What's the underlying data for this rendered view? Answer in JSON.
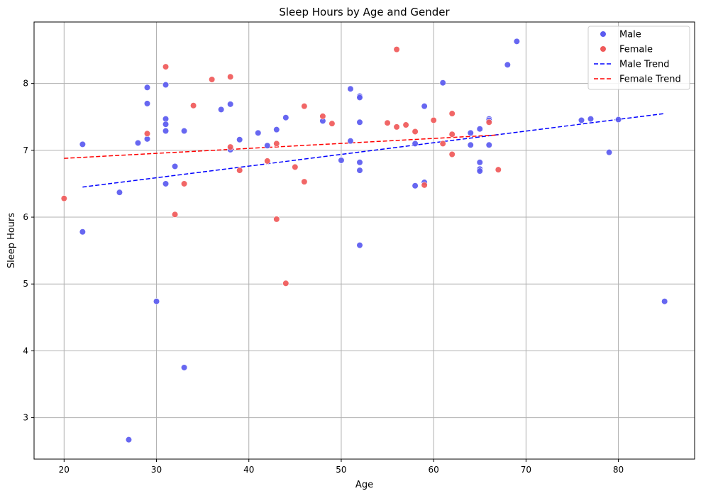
{
  "chart_data": {
    "type": "scatter",
    "title": "Sleep Hours by Age and Gender",
    "xlabel": "Age",
    "ylabel": "Sleep Hours",
    "xlim": [
      16.75,
      88.25
    ],
    "ylim": [
      2.38,
      8.92
    ],
    "xticks": [
      20,
      30,
      40,
      50,
      60,
      70,
      80
    ],
    "yticks": [
      3,
      4,
      5,
      6,
      7,
      8
    ],
    "grid": true,
    "legend_position": "top-right",
    "colors": {
      "male": "#5b5bf0",
      "female": "#f05a5a",
      "male_trend": "#0000ff",
      "female_trend": "#ff0000"
    },
    "series": [
      {
        "name": "Male",
        "kind": "scatter",
        "points": [
          [
            22,
            7.09
          ],
          [
            22,
            5.78
          ],
          [
            26,
            6.37
          ],
          [
            27,
            2.67
          ],
          [
            28,
            7.11
          ],
          [
            29,
            7.94
          ],
          [
            29,
            7.7
          ],
          [
            29,
            7.17
          ],
          [
            30,
            4.74
          ],
          [
            31,
            7.98
          ],
          [
            31,
            7.47
          ],
          [
            31,
            7.39
          ],
          [
            31,
            7.29
          ],
          [
            31,
            6.5
          ],
          [
            32,
            6.76
          ],
          [
            33,
            7.29
          ],
          [
            33,
            3.75
          ],
          [
            37,
            7.61
          ],
          [
            38,
            7.69
          ],
          [
            38,
            7.01
          ],
          [
            39,
            7.16
          ],
          [
            41,
            7.26
          ],
          [
            42,
            7.07
          ],
          [
            43,
            7.31
          ],
          [
            44,
            7.49
          ],
          [
            48,
            7.44
          ],
          [
            50,
            6.85
          ],
          [
            51,
            7.92
          ],
          [
            51,
            7.14
          ],
          [
            52,
            7.81
          ],
          [
            52,
            7.79
          ],
          [
            52,
            7.42
          ],
          [
            52,
            6.82
          ],
          [
            52,
            6.7
          ],
          [
            52,
            5.58
          ],
          [
            58,
            7.1
          ],
          [
            58,
            6.47
          ],
          [
            59,
            7.66
          ],
          [
            59,
            6.52
          ],
          [
            61,
            8.01
          ],
          [
            64,
            7.26
          ],
          [
            64,
            7.08
          ],
          [
            65,
            7.32
          ],
          [
            65,
            6.82
          ],
          [
            65,
            6.72
          ],
          [
            65,
            6.69
          ],
          [
            66,
            7.47
          ],
          [
            66,
            7.45
          ],
          [
            66,
            7.08
          ],
          [
            68,
            8.28
          ],
          [
            69,
            8.63
          ],
          [
            76,
            7.45
          ],
          [
            77,
            7.47
          ],
          [
            79,
            6.97
          ],
          [
            80,
            7.46
          ],
          [
            85,
            4.74
          ]
        ]
      },
      {
        "name": "Female",
        "kind": "scatter",
        "points": [
          [
            20,
            6.28
          ],
          [
            29,
            7.25
          ],
          [
            31,
            8.25
          ],
          [
            32,
            6.04
          ],
          [
            33,
            6.5
          ],
          [
            34,
            7.67
          ],
          [
            36,
            8.06
          ],
          [
            38,
            8.1
          ],
          [
            38,
            7.05
          ],
          [
            39,
            6.7
          ],
          [
            42,
            6.84
          ],
          [
            43,
            7.1
          ],
          [
            43,
            5.97
          ],
          [
            44,
            5.01
          ],
          [
            45,
            6.75
          ],
          [
            46,
            7.66
          ],
          [
            46,
            6.53
          ],
          [
            48,
            7.51
          ],
          [
            49,
            7.4
          ],
          [
            55,
            7.41
          ],
          [
            56,
            8.51
          ],
          [
            56,
            7.35
          ],
          [
            57,
            7.38
          ],
          [
            58,
            7.28
          ],
          [
            59,
            6.48
          ],
          [
            60,
            7.45
          ],
          [
            61,
            7.1
          ],
          [
            62,
            7.55
          ],
          [
            62,
            7.24
          ],
          [
            62,
            6.94
          ],
          [
            66,
            7.42
          ],
          [
            67,
            6.71
          ]
        ]
      },
      {
        "name": "Male Trend",
        "kind": "line",
        "points": [
          [
            22,
            6.45
          ],
          [
            85,
            7.55
          ]
        ]
      },
      {
        "name": "Female Trend",
        "kind": "line",
        "points": [
          [
            20,
            6.88
          ],
          [
            67,
            7.23
          ]
        ]
      }
    ]
  }
}
